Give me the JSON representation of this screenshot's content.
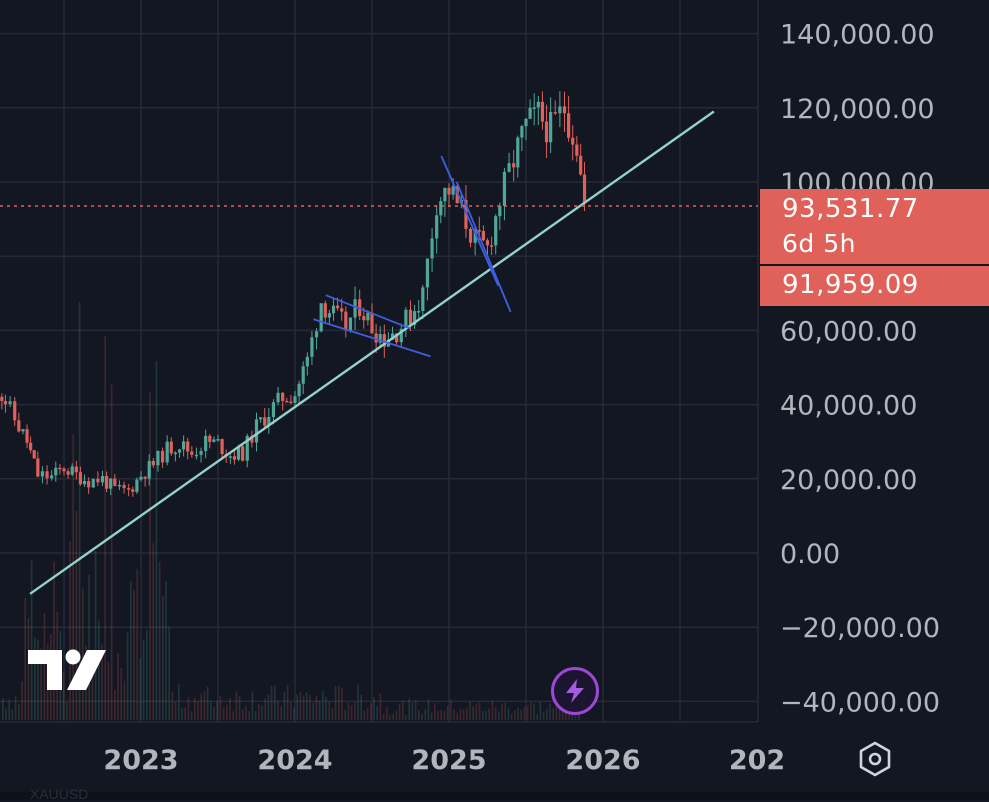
{
  "chart_data": {
    "type": "candlestick",
    "symbol_hint": "XAUUSD",
    "x_axis_labels": [
      "2023",
      "2024",
      "2025",
      "2026",
      "202"
    ],
    "y_axis_labels": [
      "140,000.00",
      "120,000.00",
      "100,000.00",
      "60,000.00",
      "40,000.00",
      "20,000.00",
      "0.00",
      "−20,000.00",
      "−40,000.00"
    ],
    "ylim": [
      -40000,
      140000
    ],
    "grid": true,
    "last_price": {
      "value": 93531.77,
      "label": "93,531.77",
      "countdown": "6d 5h",
      "close_label": "91,959.09"
    },
    "price_series": [
      [
        2022.05,
        46000
      ],
      [
        2022.12,
        41000
      ],
      [
        2022.18,
        36000
      ],
      [
        2022.26,
        30000
      ],
      [
        2022.33,
        21000
      ],
      [
        2022.42,
        20500
      ],
      [
        2022.5,
        23000
      ],
      [
        2022.58,
        21000
      ],
      [
        2022.66,
        19500
      ],
      [
        2022.75,
        20000
      ],
      [
        2022.83,
        17000
      ],
      [
        2022.92,
        16800
      ],
      [
        2023.0,
        21000
      ],
      [
        2023.08,
        24000
      ],
      [
        2023.17,
        28000
      ],
      [
        2023.25,
        29500
      ],
      [
        2023.33,
        27000
      ],
      [
        2023.42,
        30000
      ],
      [
        2023.5,
        29500
      ],
      [
        2023.58,
        26500
      ],
      [
        2023.66,
        27000
      ],
      [
        2023.75,
        34000
      ],
      [
        2023.83,
        38000
      ],
      [
        2023.92,
        42000
      ],
      [
        2024.0,
        43000
      ],
      [
        2024.08,
        52000
      ],
      [
        2024.17,
        68000
      ],
      [
        2024.25,
        64000
      ],
      [
        2024.33,
        61000
      ],
      [
        2024.42,
        67000
      ],
      [
        2024.5,
        61000
      ],
      [
        2024.58,
        58000
      ],
      [
        2024.66,
        60000
      ],
      [
        2024.75,
        64000
      ],
      [
        2024.83,
        70000
      ],
      [
        2024.92,
        95000
      ],
      [
        2025.0,
        98000
      ],
      [
        2025.08,
        92000
      ],
      [
        2025.17,
        84000
      ],
      [
        2025.25,
        82000
      ],
      [
        2025.33,
        95000
      ],
      [
        2025.42,
        106000
      ],
      [
        2025.5,
        115000
      ],
      [
        2025.58,
        118000
      ],
      [
        2025.66,
        114000
      ],
      [
        2025.75,
        120000
      ],
      [
        2025.83,
        110000
      ],
      [
        2025.88,
        93500
      ]
    ],
    "trendlines": [
      {
        "name": "long-term support",
        "from": [
          2022.28,
          -11000
        ],
        "to": [
          2026.72,
          119000
        ]
      },
      {
        "name": "flag upper",
        "from": [
          2024.2,
          69500
        ],
        "to": [
          2024.75,
          60500
        ]
      },
      {
        "name": "flag lower",
        "from": [
          2024.12,
          63000
        ],
        "to": [
          2024.88,
          53000
        ]
      },
      {
        "name": "channel left",
        "from": [
          2024.95,
          107000
        ],
        "to": [
          2025.32,
          72000
        ]
      },
      {
        "name": "channel right",
        "from": [
          2025.05,
          100000
        ],
        "to": [
          2025.4,
          65000
        ]
      }
    ]
  },
  "colors": {
    "background": "#131722",
    "grid": "#262a36",
    "axis_text": "#b2b5be",
    "up": "#4fa79a",
    "down": "#e0605a",
    "trend_support": "#92d2c8",
    "trend_pattern": "#3d5fe0",
    "last_price": "#e0605a",
    "bolt_ring": "#9c48d6"
  },
  "logo": "TradingView",
  "icons": {
    "indicator_button": "lightning-bolt-icon",
    "settings_button": "hexagon-settings-icon"
  }
}
